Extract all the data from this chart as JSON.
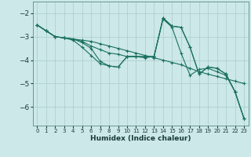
{
  "xlabel": "Humidex (Indice chaleur)",
  "xlim": [
    -0.5,
    23.5
  ],
  "ylim": [
    -6.8,
    -1.5
  ],
  "yticks": [
    -6,
    -5,
    -4,
    -3,
    -2
  ],
  "xticks": [
    0,
    1,
    2,
    3,
    4,
    5,
    6,
    7,
    8,
    9,
    10,
    11,
    12,
    13,
    14,
    15,
    16,
    17,
    18,
    19,
    20,
    21,
    22,
    23
  ],
  "bg_color": "#cce8e8",
  "grid_color": "#aacccc",
  "line_color": "#1a7060",
  "lines": [
    {
      "x": [
        0,
        1,
        2,
        3,
        4,
        5,
        6,
        7,
        8,
        9,
        10,
        11,
        12,
        13,
        14,
        15,
        16,
        17,
        18,
        19,
        20,
        21,
        22,
        23
      ],
      "y": [
        -2.5,
        -2.75,
        -3.0,
        -3.05,
        -3.1,
        -3.15,
        -3.2,
        -3.3,
        -3.4,
        -3.5,
        -3.6,
        -3.7,
        -3.8,
        -3.9,
        -4.0,
        -4.1,
        -4.2,
        -4.35,
        -4.5,
        -4.6,
        -4.7,
        -4.8,
        -4.9,
        -5.0
      ]
    },
    {
      "x": [
        0,
        1,
        2,
        3,
        4,
        5,
        6,
        7,
        8,
        9,
        10,
        11,
        12,
        13,
        14,
        15,
        16,
        17,
        18,
        19,
        20,
        21,
        22,
        23
      ],
      "y": [
        -2.5,
        -2.75,
        -3.0,
        -3.05,
        -3.1,
        -3.2,
        -3.4,
        -3.55,
        -3.7,
        -3.75,
        -3.85,
        -3.85,
        -3.9,
        -3.85,
        -2.25,
        -2.6,
        -3.7,
        -4.65,
        -4.4,
        -4.35,
        -4.5,
        -4.65,
        -5.35,
        -6.5
      ]
    },
    {
      "x": [
        0,
        1,
        2,
        3,
        4,
        5,
        6,
        7,
        8,
        9,
        10,
        11,
        12,
        13,
        14,
        15,
        16,
        17,
        18,
        19,
        20,
        21,
        22,
        23
      ],
      "y": [
        -2.5,
        -2.75,
        -3.0,
        -3.05,
        -3.1,
        -3.25,
        -3.5,
        -4.05,
        -4.25,
        -4.3,
        -3.85,
        -3.85,
        -3.85,
        -3.85,
        -2.2,
        -2.55,
        -2.6,
        -3.45,
        -4.6,
        -4.3,
        -4.35,
        -4.6,
        -5.35,
        -6.5
      ]
    },
    {
      "x": [
        0,
        1,
        2,
        3,
        4,
        5,
        6,
        7,
        8,
        9,
        10,
        11,
        12,
        13,
        14,
        15,
        16,
        17,
        18,
        19,
        20,
        21,
        22,
        23
      ],
      "y": [
        -2.5,
        -2.75,
        -3.0,
        -3.05,
        -3.15,
        -3.45,
        -3.8,
        -4.15,
        -4.25,
        -4.3,
        -3.85,
        -3.85,
        -3.85,
        -3.85,
        -2.2,
        -2.55,
        -2.6,
        -3.45,
        -4.6,
        -4.3,
        -4.35,
        -4.6,
        -5.35,
        -6.5
      ]
    }
  ]
}
